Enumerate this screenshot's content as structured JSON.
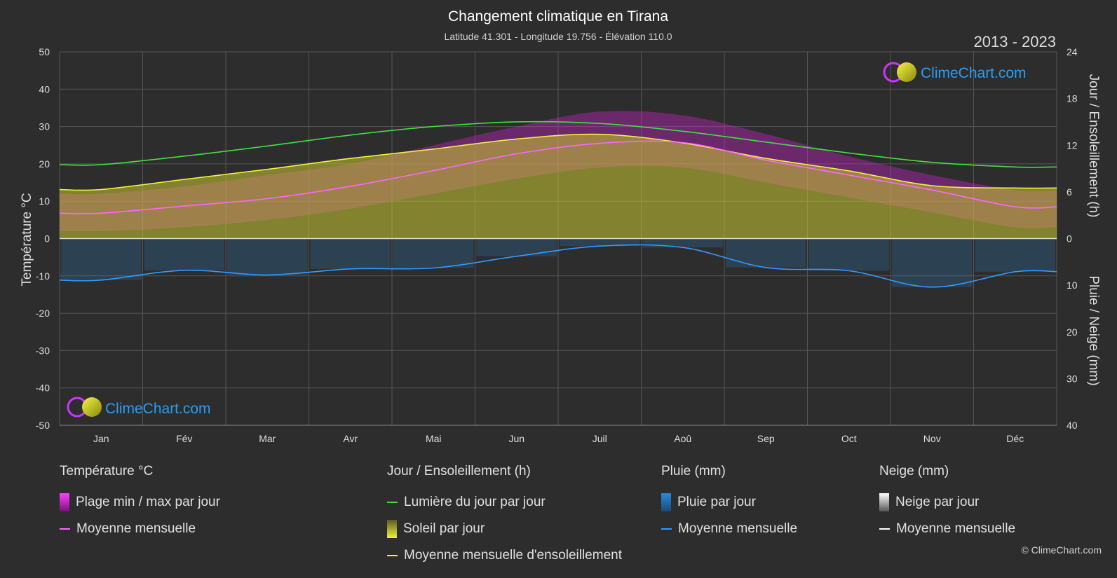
{
  "header": {
    "title": "Changement climatique en Tirana",
    "subtitle": "Latitude 41.301 - Longitude 19.756 - Élévation 110.0",
    "years": "2013 - 2023"
  },
  "brand": {
    "logo_text": "ClimeChart.com",
    "copyright": "© ClimeChart.com"
  },
  "colors": {
    "background": "#2d2d2d",
    "temp_range": "#e020e0",
    "temp_mean": "#ff66ff",
    "daylight": "#44dd44",
    "sunshine": "#c8c832",
    "sunshine_mean": "#f0f040",
    "rain": "#2a8ad8",
    "rain_mean": "#3399ff",
    "snow_mean": "#ffffff",
    "brand_blue": "#2a9df4"
  },
  "chart_data": {
    "type": "line",
    "title": "Changement climatique en Tirana",
    "months": [
      "Jan",
      "Fév",
      "Mar",
      "Avr",
      "Mai",
      "Jun",
      "Juil",
      "Aoû",
      "Sep",
      "Oct",
      "Nov",
      "Déc"
    ],
    "y_left": {
      "label": "Température °C",
      "range": [
        -50,
        50
      ],
      "ticks": [
        50,
        40,
        30,
        20,
        10,
        0,
        -10,
        -20,
        -30,
        -40,
        -50
      ]
    },
    "y_right_top": {
      "label": "Jour / Ensoleillement (h)",
      "range": [
        0,
        24
      ],
      "ticks": [
        24,
        18,
        12,
        6,
        0
      ]
    },
    "y_right_bottom": {
      "label": "Pluie / Neige (mm)",
      "range": [
        0,
        40
      ],
      "ticks": [
        0,
        10,
        20,
        30,
        40
      ]
    },
    "grid": true,
    "series": [
      {
        "name": "Lumière du jour par jour",
        "unit": "h",
        "values": [
          9.5,
          10.6,
          11.9,
          13.3,
          14.4,
          15.0,
          14.8,
          13.8,
          12.4,
          11.0,
          9.8,
          9.2
        ]
      },
      {
        "name": "Moyenne mensuelle d'ensoleillement",
        "unit": "h",
        "values": [
          6.3,
          7.6,
          8.9,
          10.3,
          11.5,
          12.8,
          13.4,
          12.3,
          10.3,
          8.7,
          6.8,
          6.5
        ]
      },
      {
        "name": "Moyenne mensuelle",
        "group": "Température °C",
        "unit": "°C",
        "values": [
          6.8,
          8.7,
          10.7,
          14.0,
          18.2,
          22.7,
          25.5,
          25.7,
          21.0,
          17.0,
          13.0,
          8.5
        ]
      },
      {
        "name": "Moyenne mensuelle",
        "group": "Pluie (mm)",
        "unit": "mm",
        "values": [
          8.9,
          6.8,
          7.8,
          6.5,
          6.3,
          3.8,
          1.6,
          1.9,
          6.2,
          6.9,
          10.4,
          7.1
        ]
      }
    ],
    "temp_band": {
      "min": [
        2,
        3,
        5,
        8,
        12,
        16,
        19,
        19,
        15,
        11,
        7,
        3
      ],
      "max": [
        12,
        14,
        17,
        20,
        25,
        30,
        34,
        33,
        28,
        22,
        17,
        13
      ]
    }
  },
  "legend": {
    "temperature": {
      "title": "Température °C",
      "items": [
        "Plage min / max par jour",
        "Moyenne mensuelle"
      ]
    },
    "sun": {
      "title": "Jour / Ensoleillement (h)",
      "items": [
        "Lumière du jour par jour",
        "Soleil par jour",
        "Moyenne mensuelle d'ensoleillement"
      ]
    },
    "rain": {
      "title": "Pluie (mm)",
      "items": [
        "Pluie par jour",
        "Moyenne mensuelle"
      ]
    },
    "snow": {
      "title": "Neige (mm)",
      "items": [
        "Neige par jour",
        "Moyenne mensuelle"
      ]
    }
  }
}
